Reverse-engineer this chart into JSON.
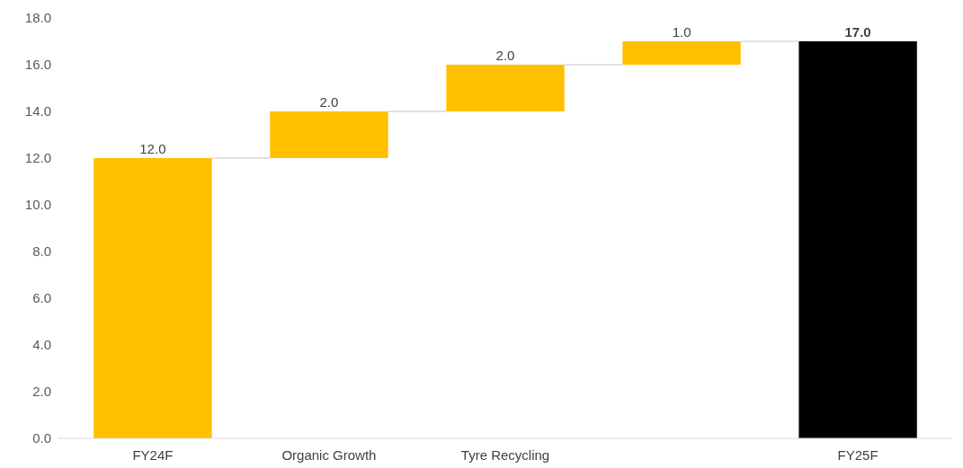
{
  "chart_data": {
    "type": "bar",
    "categories": [
      "FY24F",
      "Organic Growth",
      "Tyre Recycling",
      null,
      "FY25F"
    ],
    "values": [
      12,
      2,
      2,
      1,
      17
    ],
    "base": [
      0,
      12,
      14,
      16,
      0
    ],
    "colors": [
      "#ffc000",
      "#ffc000",
      "#ffc000",
      "#ffc000",
      "#000000"
    ],
    "value_labels": [
      "12.0",
      "2.0",
      "2.0",
      "1.0",
      "17.0"
    ],
    "ylim": [
      0,
      18
    ],
    "yticks": [
      {
        "value": 0,
        "label": "0.0"
      },
      {
        "value": 2,
        "label": "2.0"
      },
      {
        "value": 4,
        "label": "4.0"
      },
      {
        "value": 6,
        "label": "6.0"
      },
      {
        "value": 8,
        "label": "8.0"
      },
      {
        "value": 10,
        "label": "10.0"
      },
      {
        "value": 12,
        "label": "12.0"
      },
      {
        "value": 14,
        "label": "14.0"
      },
      {
        "value": 16,
        "label": "16.0"
      },
      {
        "value": 18,
        "label": "18.0"
      }
    ],
    "grid": false
  }
}
